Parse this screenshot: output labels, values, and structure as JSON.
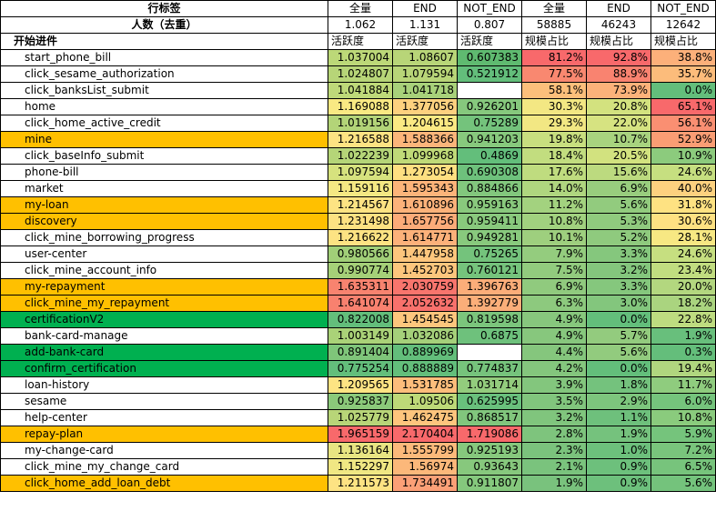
{
  "header": {
    "row_label_title": "行标签",
    "row_label_sub": "人数（去重）",
    "row_label_start": "开始进件",
    "columns": [
      {
        "name": "全量",
        "count": "1.062",
        "metric": "活跃度"
      },
      {
        "name": "END",
        "count": "1.131",
        "metric": "活跃度"
      },
      {
        "name": "NOT_END",
        "count": "0.807",
        "metric": "活跃度"
      },
      {
        "name": "全量",
        "count": "58885",
        "metric": "规模占比"
      },
      {
        "name": "END",
        "count": "46243",
        "metric": "规模占比"
      },
      {
        "name": "NOT_END",
        "count": "12642",
        "metric": "规模占比"
      }
    ]
  },
  "colors": {
    "orange": "#ffc000",
    "green": "#00b050"
  },
  "rows": [
    {
      "label": "start_phone_bill",
      "hl": "",
      "vals": [
        "1.037004",
        "1.08607",
        "0.607383",
        "81.2%",
        "92.8%",
        "38.8%"
      ],
      "bg": [
        "#bcd878",
        "#b8d578",
        "#5fba70",
        "#f8696b",
        "#f8696b",
        "#fcb07a"
      ]
    },
    {
      "label": "click_sesame_authorization",
      "hl": "",
      "vals": [
        "1.024807",
        "1.079594",
        "0.521912",
        "77.5%",
        "88.9%",
        "35.7%"
      ],
      "bg": [
        "#b7d578",
        "#b8d578",
        "#63be7b",
        "#f98870",
        "#f98370",
        "#fcbc7b"
      ]
    },
    {
      "label": "click_banksList_submit",
      "hl": "",
      "vals": [
        "1.041884",
        "1.041718",
        "",
        "58.1%",
        "73.9%",
        "0.0%"
      ],
      "bg": [
        "#bed979",
        "#a8d17a",
        "#ffffff",
        "#fcbf7b",
        "#fcb27a",
        "#63be7b"
      ]
    },
    {
      "label": "home",
      "hl": "",
      "vals": [
        "1.169088",
        "1.377056",
        "0.926201",
        "30.3%",
        "20.8%",
        "65.1%"
      ],
      "bg": [
        "#f9e983",
        "#fdd17f",
        "#86c87d",
        "#f3e783",
        "#d3e27f",
        "#f8696b"
      ]
    },
    {
      "label": "click_home_active_credit",
      "hl": "",
      "vals": [
        "1.019156",
        "1.204615",
        "0.75289",
        "29.3%",
        "22.0%",
        "56.1%"
      ],
      "bg": [
        "#b3d478",
        "#fbe983",
        "#74c37c",
        "#f2e783",
        "#d6e381",
        "#fa8f72"
      ]
    },
    {
      "label": "mine",
      "hl": "orange",
      "vals": [
        "1.216588",
        "1.588366",
        "0.941203",
        "19.8%",
        "10.7%",
        "52.9%"
      ],
      "bg": [
        "#fde383",
        "#fcb57a",
        "#87c97d",
        "#c8df7f",
        "#a8d37f",
        "#fa9d74"
      ]
    },
    {
      "label": "click_baseInfo_submit",
      "hl": "",
      "vals": [
        "1.022239",
        "1.099968",
        "0.4869",
        "18.4%",
        "20.5%",
        "10.9%"
      ],
      "bg": [
        "#b5d578",
        "#c0da78",
        "#63be7b",
        "#c2dd7f",
        "#d2e27f",
        "#8ccb7d"
      ]
    },
    {
      "label": "phone-bill",
      "hl": "",
      "vals": [
        "1.097594",
        "1.273054",
        "0.690308",
        "17.6%",
        "15.6%",
        "24.6%"
      ],
      "bg": [
        "#d6e27e",
        "#fedf81",
        "#6ec17c",
        "#bfdc7f",
        "#bcda7f",
        "#c6df80"
      ]
    },
    {
      "label": "market",
      "hl": "",
      "vals": [
        "1.159116",
        "1.595343",
        "0.884866",
        "14.0%",
        "6.9%",
        "40.0%"
      ],
      "bg": [
        "#f4e883",
        "#fcb47a",
        "#82c77d",
        "#afd67f",
        "#98cd7e",
        "#fdd17f"
      ]
    },
    {
      "label": "my-loan",
      "hl": "orange",
      "vals": [
        "1.214567",
        "1.610896",
        "0.959163",
        "11.2%",
        "5.6%",
        "31.8%"
      ],
      "bg": [
        "#fde383",
        "#fcb27a",
        "#89c97d",
        "#a3d27f",
        "#92cb7e",
        "#fee282"
      ]
    },
    {
      "label": "discovery",
      "hl": "orange",
      "vals": [
        "1.231498",
        "1.657756",
        "0.959411",
        "10.8%",
        "5.3%",
        "30.6%"
      ],
      "bg": [
        "#fde182",
        "#fcab79",
        "#89c97d",
        "#a1d17f",
        "#90ca7e",
        "#fee182"
      ]
    },
    {
      "label": "click_mine_borrowing_progress",
      "hl": "",
      "vals": [
        "1.216622",
        "1.614771",
        "0.949281",
        "10.1%",
        "5.2%",
        "28.1%"
      ],
      "bg": [
        "#fde383",
        "#fcb17a",
        "#88c97d",
        "#9ecf7e",
        "#8fca7e",
        "#f7e883"
      ]
    },
    {
      "label": "user-center",
      "hl": "",
      "vals": [
        "0.980566",
        "1.447958",
        "0.75265",
        "7.9%",
        "3.3%",
        "24.6%"
      ],
      "bg": [
        "#a1cf78",
        "#fdc67d",
        "#74c37c",
        "#94cc7e",
        "#85c77d",
        "#c6df80"
      ]
    },
    {
      "label": "click_mine_account_info",
      "hl": "",
      "vals": [
        "0.990774",
        "1.452703",
        "0.760121",
        "7.5%",
        "3.2%",
        "23.4%"
      ],
      "bg": [
        "#a5d078",
        "#fdc67d",
        "#75c37c",
        "#92cb7e",
        "#84c67d",
        "#c1dd80"
      ]
    },
    {
      "label": "my-repayment",
      "hl": "orange",
      "vals": [
        "1.635311",
        "2.030759",
        "1.396763",
        "6.9%",
        "3.3%",
        "20.0%"
      ],
      "bg": [
        "#f8836f",
        "#f8756d",
        "#fbad79",
        "#90ca7e",
        "#85c77d",
        "#b3d77f"
      ]
    },
    {
      "label": "click_mine_my_repayment",
      "hl": "orange",
      "vals": [
        "1.641074",
        "2.052632",
        "1.392779",
        "6.3%",
        "3.0%",
        "18.2%"
      ],
      "bg": [
        "#f8816f",
        "#f8716c",
        "#fbae79",
        "#8dc97e",
        "#83c67d",
        "#aad47f"
      ]
    },
    {
      "label": "certificationV2",
      "hl": "green",
      "vals": [
        "0.822008",
        "1.454545",
        "0.819598",
        "4.9%",
        "0.0%",
        "22.8%"
      ],
      "bg": [
        "#63be7b",
        "#fdc67d",
        "#7bc57c",
        "#87c77d",
        "#63be7b",
        "#bedc80"
      ]
    },
    {
      "label": "bank-card-manage",
      "hl": "",
      "vals": [
        "1.003149",
        "1.032086",
        "0.6875",
        "4.9%",
        "5.7%",
        "1.9%"
      ],
      "bg": [
        "#aad278",
        "#a5d07a",
        "#6ec17c",
        "#87c77d",
        "#93cb7e",
        "#68bf7c"
      ]
    },
    {
      "label": "add-bank-card",
      "hl": "green",
      "vals": [
        "0.891404",
        "0.889969",
        "",
        "4.4%",
        "5.6%",
        "0.3%"
      ],
      "bg": [
        "#7fc57a",
        "#63be7b",
        "#ffffff",
        "#85c67d",
        "#92cb7e",
        "#64be7b"
      ]
    },
    {
      "label": "confirm_certification",
      "hl": "green",
      "vals": [
        "0.775254",
        "0.888889",
        "0.774837",
        "4.2%",
        "0.0%",
        "19.4%"
      ],
      "bg": [
        "#63be7b",
        "#63be7b",
        "#76c37c",
        "#84c67d",
        "#63be7b",
        "#b0d67f"
      ]
    },
    {
      "label": "loan-history",
      "hl": "",
      "vals": [
        "1.209565",
        "1.531785",
        "1.031714",
        "3.9%",
        "1.8%",
        "11.7%"
      ],
      "bg": [
        "#fde483",
        "#fcbd7b",
        "#93cc7d",
        "#83c67d",
        "#74c27d",
        "#8fcc7e"
      ]
    },
    {
      "label": "sesame",
      "hl": "",
      "vals": [
        "0.925837",
        "1.09506",
        "0.625995",
        "3.5%",
        "2.9%",
        "6.0%"
      ],
      "bg": [
        "#8bc97a",
        "#bdd978",
        "#69c07c",
        "#81c57d",
        "#7dc57d",
        "#75c47c"
      ]
    },
    {
      "label": "help-center",
      "hl": "",
      "vals": [
        "1.025779",
        "1.462475",
        "0.868517",
        "3.2%",
        "1.1%",
        "10.8%"
      ],
      "bg": [
        "#b8d578",
        "#fdc57d",
        "#81c67d",
        "#80c57d",
        "#6ec07c",
        "#8acb7d"
      ]
    },
    {
      "label": "repay-plan",
      "hl": "orange",
      "vals": [
        "1.965159",
        "2.170404",
        "1.719086",
        "2.8%",
        "1.9%",
        "5.9%"
      ],
      "bg": [
        "#f8696b",
        "#f8696b",
        "#f8696b",
        "#7ec47d",
        "#75c27d",
        "#75c47c"
      ]
    },
    {
      "label": "my-change-card",
      "hl": "",
      "vals": [
        "1.136164",
        "1.555799",
        "0.925193",
        "2.3%",
        "1.0%",
        "7.2%"
      ],
      "bg": [
        "#e8e582",
        "#fcba7b",
        "#86c87d",
        "#7bc37d",
        "#6dc07c",
        "#79c57c"
      ]
    },
    {
      "label": "click_mine_my_change_card",
      "hl": "",
      "vals": [
        "1.152297",
        "1.56974",
        "0.93643",
        "2.1%",
        "0.9%",
        "6.5%"
      ],
      "bg": [
        "#f0e783",
        "#fcb87a",
        "#87c87d",
        "#7ac37d",
        "#6dc07c",
        "#77c47c"
      ]
    },
    {
      "label": "click_home_add_loan_debt",
      "hl": "orange",
      "vals": [
        "1.211573",
        "1.734491",
        "0.911807",
        "1.9%",
        "0.9%",
        "5.6%"
      ],
      "bg": [
        "#fde383",
        "#fba077",
        "#85c87d",
        "#79c27d",
        "#6dc07c",
        "#74c37c"
      ]
    }
  ]
}
